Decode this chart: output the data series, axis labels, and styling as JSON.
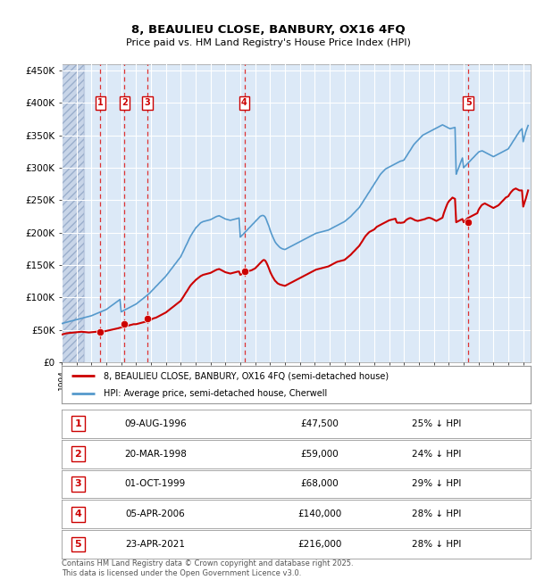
{
  "title": "8, BEAULIEU CLOSE, BANBURY, OX16 4FQ",
  "subtitle": "Price paid vs. HM Land Registry's House Price Index (HPI)",
  "plot_bg_color": "#dce9f7",
  "grid_color": "#ffffff",
  "sale_dates": [
    1996.6,
    1998.22,
    1999.75,
    2006.27,
    2021.31
  ],
  "sale_prices": [
    47500,
    59000,
    68000,
    140000,
    216000
  ],
  "sale_labels": [
    "1",
    "2",
    "3",
    "4",
    "5"
  ],
  "sale_label_dates_str": [
    "09-AUG-1996",
    "20-MAR-1998",
    "01-OCT-1999",
    "05-APR-2006",
    "23-APR-2021"
  ],
  "sale_label_prices_str": [
    "£47,500",
    "£59,000",
    "£68,000",
    "£140,000",
    "£216,000"
  ],
  "sale_label_hpi": [
    "25% ↓ HPI",
    "24% ↓ HPI",
    "29% ↓ HPI",
    "28% ↓ HPI",
    "28% ↓ HPI"
  ],
  "red_line_color": "#cc0000",
  "blue_line_color": "#5599cc",
  "sale_dot_color": "#cc0000",
  "vline_color": "#dd3333",
  "box_color": "#cc0000",
  "xmin": 1994.0,
  "xmax": 2025.5,
  "ymin": 0,
  "ymax": 460000,
  "yticks": [
    0,
    50000,
    100000,
    150000,
    200000,
    250000,
    300000,
    350000,
    400000,
    450000
  ],
  "ytick_labels": [
    "£0",
    "£50K",
    "£100K",
    "£150K",
    "£200K",
    "£250K",
    "£300K",
    "£350K",
    "£400K",
    "£450K"
  ],
  "legend_red_label": "8, BEAULIEU CLOSE, BANBURY, OX16 4FQ (semi-detached house)",
  "legend_blue_label": "HPI: Average price, semi-detached house, Cherwell",
  "footer": "Contains HM Land Registry data © Crown copyright and database right 2025.\nThis data is licensed under the Open Government Licence v3.0.",
  "hatch_end_year": 1995.5,
  "hpi_x": [
    1994.0,
    1994.08,
    1994.17,
    1994.25,
    1994.33,
    1994.42,
    1994.5,
    1994.58,
    1994.67,
    1994.75,
    1994.83,
    1994.92,
    1995.0,
    1995.08,
    1995.17,
    1995.25,
    1995.33,
    1995.42,
    1995.5,
    1995.58,
    1995.67,
    1995.75,
    1995.83,
    1995.92,
    1996.0,
    1996.08,
    1996.17,
    1996.25,
    1996.33,
    1996.42,
    1996.5,
    1996.58,
    1996.67,
    1996.75,
    1996.83,
    1996.92,
    1997.0,
    1997.08,
    1997.17,
    1997.25,
    1997.33,
    1997.42,
    1997.5,
    1997.58,
    1997.67,
    1997.75,
    1997.83,
    1997.92,
    1998.0,
    1998.08,
    1998.17,
    1998.25,
    1998.33,
    1998.42,
    1998.5,
    1998.58,
    1998.67,
    1998.75,
    1998.83,
    1998.92,
    1999.0,
    1999.08,
    1999.17,
    1999.25,
    1999.33,
    1999.42,
    1999.5,
    1999.58,
    1999.67,
    1999.75,
    1999.83,
    1999.92,
    2000.0,
    2000.08,
    2000.17,
    2000.25,
    2000.33,
    2000.42,
    2000.5,
    2000.58,
    2000.67,
    2000.75,
    2000.83,
    2000.92,
    2001.0,
    2001.08,
    2001.17,
    2001.25,
    2001.33,
    2001.42,
    2001.5,
    2001.58,
    2001.67,
    2001.75,
    2001.83,
    2001.92,
    2002.0,
    2002.08,
    2002.17,
    2002.25,
    2002.33,
    2002.42,
    2002.5,
    2002.58,
    2002.67,
    2002.75,
    2002.83,
    2002.92,
    2003.0,
    2003.08,
    2003.17,
    2003.25,
    2003.33,
    2003.42,
    2003.5,
    2003.58,
    2003.67,
    2003.75,
    2003.83,
    2003.92,
    2004.0,
    2004.08,
    2004.17,
    2004.25,
    2004.33,
    2004.42,
    2004.5,
    2004.58,
    2004.67,
    2004.75,
    2004.83,
    2004.92,
    2005.0,
    2005.08,
    2005.17,
    2005.25,
    2005.33,
    2005.42,
    2005.5,
    2005.58,
    2005.67,
    2005.75,
    2005.83,
    2005.92,
    2006.0,
    2006.08,
    2006.17,
    2006.25,
    2006.33,
    2006.42,
    2006.5,
    2006.58,
    2006.67,
    2006.75,
    2006.83,
    2006.92,
    2007.0,
    2007.08,
    2007.17,
    2007.25,
    2007.33,
    2007.42,
    2007.5,
    2007.58,
    2007.67,
    2007.75,
    2007.83,
    2007.92,
    2008.0,
    2008.08,
    2008.17,
    2008.25,
    2008.33,
    2008.42,
    2008.5,
    2008.58,
    2008.67,
    2008.75,
    2008.83,
    2008.92,
    2009.0,
    2009.08,
    2009.17,
    2009.25,
    2009.33,
    2009.42,
    2009.5,
    2009.58,
    2009.67,
    2009.75,
    2009.83,
    2009.92,
    2010.0,
    2010.08,
    2010.17,
    2010.25,
    2010.33,
    2010.42,
    2010.5,
    2010.58,
    2010.67,
    2010.75,
    2010.83,
    2010.92,
    2011.0,
    2011.08,
    2011.17,
    2011.25,
    2011.33,
    2011.42,
    2011.5,
    2011.58,
    2011.67,
    2011.75,
    2011.83,
    2011.92,
    2012.0,
    2012.08,
    2012.17,
    2012.25,
    2012.33,
    2012.42,
    2012.5,
    2012.58,
    2012.67,
    2012.75,
    2012.83,
    2012.92,
    2013.0,
    2013.08,
    2013.17,
    2013.25,
    2013.33,
    2013.42,
    2013.5,
    2013.58,
    2013.67,
    2013.75,
    2013.83,
    2013.92,
    2014.0,
    2014.08,
    2014.17,
    2014.25,
    2014.33,
    2014.42,
    2014.5,
    2014.58,
    2014.67,
    2014.75,
    2014.83,
    2014.92,
    2015.0,
    2015.08,
    2015.17,
    2015.25,
    2015.33,
    2015.42,
    2015.5,
    2015.58,
    2015.67,
    2015.75,
    2015.83,
    2015.92,
    2016.0,
    2016.08,
    2016.17,
    2016.25,
    2016.33,
    2016.42,
    2016.5,
    2016.58,
    2016.67,
    2016.75,
    2016.83,
    2016.92,
    2017.0,
    2017.08,
    2017.17,
    2017.25,
    2017.33,
    2017.42,
    2017.5,
    2017.58,
    2017.67,
    2017.75,
    2017.83,
    2017.92,
    2018.0,
    2018.08,
    2018.17,
    2018.25,
    2018.33,
    2018.42,
    2018.5,
    2018.58,
    2018.67,
    2018.75,
    2018.83,
    2018.92,
    2019.0,
    2019.08,
    2019.17,
    2019.25,
    2019.33,
    2019.42,
    2019.5,
    2019.58,
    2019.67,
    2019.75,
    2019.83,
    2019.92,
    2020.0,
    2020.08,
    2020.17,
    2020.25,
    2020.33,
    2020.42,
    2020.5,
    2020.58,
    2020.67,
    2020.75,
    2020.83,
    2020.92,
    2021.0,
    2021.08,
    2021.17,
    2021.25,
    2021.33,
    2021.42,
    2021.5,
    2021.58,
    2021.67,
    2021.75,
    2021.83,
    2021.92,
    2022.0,
    2022.08,
    2022.17,
    2022.25,
    2022.33,
    2022.42,
    2022.5,
    2022.58,
    2022.67,
    2022.75,
    2022.83,
    2022.92,
    2023.0,
    2023.08,
    2023.17,
    2023.25,
    2023.33,
    2023.42,
    2023.5,
    2023.58,
    2023.67,
    2023.75,
    2023.83,
    2023.92,
    2024.0,
    2024.08,
    2024.17,
    2024.25,
    2024.33,
    2024.42,
    2024.5,
    2024.58,
    2024.67,
    2024.75,
    2024.83,
    2024.92,
    2025.0,
    2025.17,
    2025.33
  ],
  "hpi_y": [
    60000,
    60500,
    61000,
    61500,
    62000,
    62500,
    63000,
    63500,
    64000,
    64500,
    65000,
    65500,
    66000,
    66500,
    67000,
    67500,
    68000,
    68500,
    69000,
    69500,
    70000,
    70500,
    71000,
    71500,
    72000,
    72800,
    73600,
    74400,
    75200,
    76000,
    76800,
    77600,
    78400,
    79200,
    80000,
    80800,
    81600,
    83000,
    84400,
    85800,
    87200,
    88600,
    90000,
    91400,
    92800,
    94200,
    95600,
    97000,
    78000,
    79000,
    80000,
    81000,
    82000,
    83000,
    84000,
    85000,
    86000,
    87000,
    88000,
    89000,
    90000,
    91500,
    93000,
    94500,
    96000,
    97500,
    99000,
    100500,
    102000,
    103500,
    105000,
    107000,
    109000,
    111000,
    113000,
    115000,
    117000,
    119000,
    121000,
    123000,
    125000,
    127000,
    129000,
    131000,
    133000,
    135500,
    138000,
    140500,
    143000,
    145500,
    148000,
    150500,
    153000,
    155500,
    158000,
    160500,
    163000,
    167000,
    171000,
    175000,
    179000,
    183000,
    187000,
    191000,
    195000,
    198000,
    201000,
    204000,
    207000,
    209000,
    211000,
    213000,
    215000,
    216000,
    217000,
    217500,
    218000,
    218500,
    219000,
    219500,
    220000,
    221000,
    222000,
    223000,
    224000,
    225000,
    225500,
    226000,
    225000,
    224000,
    223000,
    222000,
    221000,
    220500,
    220000,
    219500,
    219000,
    219500,
    220000,
    220500,
    221000,
    221500,
    222000,
    222500,
    193000,
    195000,
    197000,
    199000,
    201000,
    203000,
    205000,
    207000,
    209000,
    211000,
    213000,
    215000,
    217000,
    219000,
    221000,
    223000,
    225000,
    226000,
    226500,
    226000,
    224000,
    220000,
    215000,
    210000,
    204000,
    199000,
    194000,
    190000,
    186000,
    183000,
    181000,
    179000,
    177000,
    176000,
    175000,
    174500,
    174000,
    175000,
    176000,
    177000,
    178000,
    179000,
    180000,
    181000,
    182000,
    183000,
    184000,
    185000,
    186000,
    187000,
    188000,
    189000,
    190000,
    191000,
    192000,
    193000,
    194000,
    195000,
    196000,
    197000,
    198000,
    199000,
    199500,
    200000,
    200500,
    201000,
    201500,
    202000,
    202500,
    203000,
    203500,
    204000,
    205000,
    206000,
    207000,
    208000,
    209000,
    210000,
    211000,
    212000,
    213000,
    214000,
    215000,
    216000,
    217000,
    218500,
    220000,
    221500,
    223000,
    225000,
    227000,
    229000,
    231000,
    233000,
    235000,
    237000,
    239000,
    242000,
    245000,
    248000,
    251000,
    254000,
    257000,
    260000,
    263000,
    266000,
    269000,
    272000,
    275000,
    278000,
    281000,
    284000,
    287000,
    290000,
    292000,
    294000,
    296000,
    298000,
    299000,
    300000,
    301000,
    302000,
    303000,
    304000,
    305000,
    306000,
    307000,
    308000,
    309000,
    310000,
    310500,
    311000,
    312000,
    315000,
    318000,
    321000,
    324000,
    327000,
    330000,
    333000,
    336000,
    338000,
    340000,
    342000,
    344000,
    346000,
    348000,
    350000,
    351000,
    352000,
    353000,
    354000,
    355000,
    356000,
    357000,
    358000,
    359000,
    360000,
    361000,
    362000,
    363000,
    364000,
    365000,
    366000,
    365000,
    364000,
    363000,
    362000,
    361000,
    360000,
    360500,
    361000,
    361500,
    362000,
    290000,
    295000,
    300000,
    305000,
    310000,
    315000,
    300000,
    302000,
    304000,
    306000,
    308000,
    310000,
    312000,
    314000,
    316000,
    318000,
    320000,
    322000,
    324000,
    325000,
    325500,
    326000,
    325000,
    324000,
    323000,
    322000,
    321000,
    320000,
    319000,
    318000,
    317000,
    318000,
    319000,
    320000,
    321000,
    322000,
    323000,
    324000,
    325000,
    326000,
    327000,
    328000,
    329000,
    332000,
    335000,
    338000,
    341000,
    344000,
    347000,
    350000,
    353000,
    356000,
    358000,
    360000,
    340000,
    355000,
    365000
  ],
  "red_y": [
    43000,
    43500,
    44000,
    44500,
    45000,
    45200,
    45400,
    45600,
    45800,
    46000,
    46200,
    46400,
    46600,
    46800,
    47000,
    47200,
    47400,
    47200,
    47000,
    46800,
    46600,
    46400,
    46200,
    46400,
    46600,
    46800,
    47000,
    47200,
    47400,
    47600,
    47800,
    47500,
    47500,
    47500,
    47800,
    48200,
    48600,
    49000,
    49400,
    49800,
    50200,
    50600,
    51000,
    51500,
    52000,
    52500,
    53000,
    53500,
    54000,
    54500,
    55000,
    55500,
    56000,
    56500,
    57000,
    57500,
    58000,
    58500,
    59000,
    59000,
    59000,
    59500,
    60000,
    60500,
    61000,
    61500,
    62000,
    62500,
    63000,
    63500,
    64000,
    65000,
    66000,
    67000,
    68000,
    68500,
    69000,
    70000,
    71000,
    72000,
    73000,
    74000,
    75000,
    76000,
    77000,
    78500,
    80000,
    81500,
    83000,
    84500,
    86000,
    87500,
    89000,
    90500,
    92000,
    93500,
    95000,
    98000,
    101000,
    104000,
    107000,
    110000,
    113000,
    116000,
    119000,
    121000,
    123000,
    125000,
    127000,
    128500,
    130000,
    131500,
    133000,
    134000,
    135000,
    135500,
    136000,
    136500,
    137000,
    137500,
    138000,
    139000,
    140000,
    141000,
    142000,
    143000,
    143500,
    144000,
    143000,
    142000,
    141000,
    140000,
    139000,
    138500,
    138000,
    137500,
    137000,
    137500,
    138000,
    138500,
    139000,
    139500,
    140000,
    140000,
    135000,
    136000,
    137000,
    138000,
    139000,
    140000,
    140500,
    141000,
    141500,
    142000,
    143000,
    144000,
    145000,
    147000,
    149000,
    151000,
    153000,
    155000,
    157000,
    158000,
    157000,
    154000,
    150000,
    145000,
    140000,
    136000,
    132000,
    129000,
    126000,
    124000,
    122000,
    121000,
    120000,
    119500,
    119000,
    118500,
    118000,
    119000,
    120000,
    121000,
    122000,
    123000,
    124000,
    125000,
    126000,
    127000,
    128000,
    129000,
    130000,
    131000,
    132000,
    133000,
    134000,
    135000,
    136000,
    137000,
    138000,
    139000,
    140000,
    141000,
    142000,
    143000,
    143500,
    144000,
    144500,
    145000,
    145500,
    146000,
    146500,
    147000,
    147500,
    148000,
    149000,
    150000,
    151000,
    152000,
    153000,
    154000,
    155000,
    155500,
    156000,
    156500,
    157000,
    157500,
    158000,
    159500,
    161000,
    162500,
    164000,
    166000,
    168000,
    170000,
    172000,
    174000,
    176000,
    178000,
    180000,
    183000,
    186000,
    189000,
    192000,
    195000,
    197000,
    199000,
    201000,
    202000,
    203000,
    204000,
    205000,
    207000,
    209000,
    210000,
    211000,
    212000,
    213000,
    214000,
    215000,
    216000,
    217000,
    218000,
    219000,
    219500,
    220000,
    220500,
    221000,
    221500,
    216000,
    215000,
    215500,
    215000,
    215200,
    215500,
    216000,
    218000,
    220000,
    221000,
    222000,
    222500,
    222000,
    221000,
    220000,
    219000,
    218500,
    218000,
    218500,
    219000,
    219500,
    220000,
    220500,
    221000,
    222000,
    222500,
    223000,
    222500,
    222000,
    221000,
    220000,
    219000,
    218000,
    219000,
    220000,
    221000,
    222000,
    223000,
    230000,
    235000,
    240000,
    245000,
    248000,
    250000,
    252000,
    254000,
    253000,
    252000,
    216000,
    217000,
    218000,
    219000,
    220000,
    221000,
    216000,
    218000,
    220000,
    222000,
    223000,
    224000,
    225000,
    226000,
    227000,
    228000,
    229000,
    230000,
    235000,
    238000,
    241000,
    243000,
    244000,
    245000,
    244000,
    243000,
    242000,
    241000,
    240000,
    239000,
    238000,
    239000,
    240000,
    241000,
    242000,
    244000,
    246000,
    248000,
    250000,
    252000,
    254000,
    255000,
    256000,
    259000,
    262000,
    264000,
    266000,
    267000,
    268000,
    267000,
    266000,
    265000,
    265000,
    265000,
    240000,
    252000,
    265000
  ]
}
